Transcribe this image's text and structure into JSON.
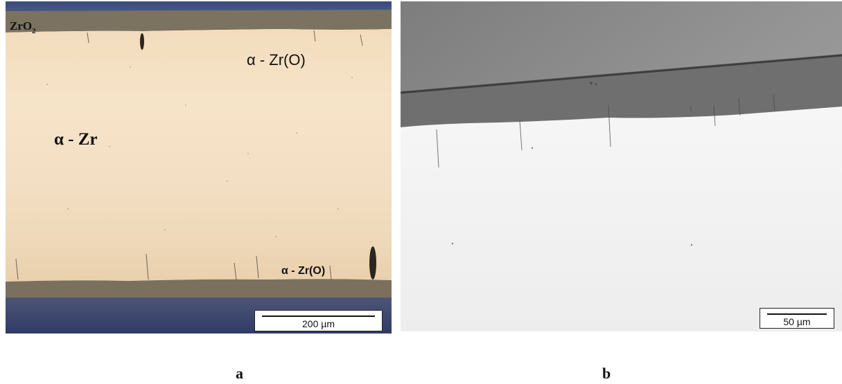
{
  "panel_a": {
    "labels": {
      "zro2_main": "ZrO",
      "zro2_sub": "2",
      "azro_top": "α - Zr(O)",
      "azr": "α - Zr",
      "azro_bottom": "α - Zr(O)"
    },
    "scale_bar": "200 µm"
  },
  "panel_b": {
    "scale_bar": "50 µm"
  },
  "captions": {
    "a": "a",
    "b": "b"
  },
  "colors": {
    "resin_blue": "#3d4a78",
    "oxide_layer": "#7d7362",
    "alpha_zr_o": "#f0dcc0",
    "alpha_zr": "#f4e2c8",
    "sem_background": "#8a8a8a",
    "sem_oxide": "#6e6e6e",
    "sem_metal": "#f2f2f2"
  }
}
